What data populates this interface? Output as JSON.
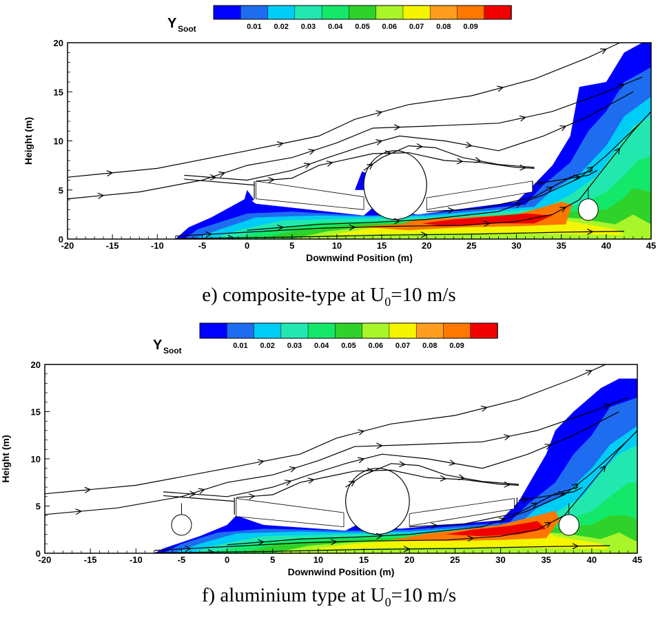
{
  "colorbar_colors": [
    "#0000ff",
    "#1e6cf0",
    "#00cdf5",
    "#22e8b0",
    "#14e86a",
    "#2ed22a",
    "#a8f52a",
    "#f5f500",
    "#ff9e1e",
    "#fe7800",
    "#f00000"
  ],
  "colorbar_ticks": [
    "0.01",
    "0.02",
    "0.03",
    "0.04",
    "0.05",
    "0.06",
    "0.07",
    "0.08",
    "0.09"
  ],
  "colorbar_title": "Y",
  "colorbar_title_sub": "Soot",
  "chart_data": [
    {
      "type": "heatmap",
      "caption_prefix": "e) composite-type at U",
      "caption_sub": "0",
      "caption_suffix": "=10 m/s",
      "xlabel": "Downwind Position (m)",
      "ylabel": "Height (m)",
      "xlim": [
        -20,
        45
      ],
      "ylim": [
        0,
        20
      ],
      "xticks": [
        "-20",
        "-15",
        "-10",
        "-5",
        "0",
        "5",
        "10",
        "15",
        "20",
        "25",
        "30",
        "35",
        "40",
        "45"
      ],
      "yticks": [
        "0",
        "5",
        "10",
        "15",
        "20"
      ],
      "colorbar": {
        "label": "Y_Soot",
        "range": [
          0.0,
          0.1
        ],
        "ticks": [
          0.01,
          0.02,
          0.03,
          0.04,
          0.05,
          0.06,
          0.07,
          0.08,
          0.09
        ]
      },
      "peak_soot_region": "x 20–36 m, height 1–4 m (Y_Soot ≈ 0.08–0.09)",
      "fuselage": {
        "center": [
          16.5,
          5.5
        ],
        "radius": 3.5
      },
      "engines": [
        {
          "center": [
            38,
            3
          ],
          "radius": 1.1
        }
      ]
    },
    {
      "type": "heatmap",
      "caption_prefix": "f) aluminium type at U",
      "caption_sub": "0",
      "caption_suffix": "=10 m/s",
      "xlabel": "Downwind Position (m)",
      "ylabel": "Height (m)",
      "xlim": [
        -20,
        45
      ],
      "ylim": [
        0,
        20
      ],
      "xticks": [
        "-20",
        "-15",
        "-10",
        "-5",
        "0",
        "5",
        "10",
        "15",
        "20",
        "25",
        "30",
        "35",
        "40",
        "45"
      ],
      "yticks": [
        "0",
        "5",
        "10",
        "15",
        "20"
      ],
      "colorbar": {
        "label": "Y_Soot",
        "range": [
          0.0,
          0.1
        ],
        "ticks": [
          0.01,
          0.02,
          0.03,
          0.04,
          0.05,
          0.06,
          0.07,
          0.08,
          0.09
        ]
      },
      "peak_soot_region": "x 22–35 m, height 1–4 m (Y_Soot ≈ 0.08–0.09)",
      "fuselage": {
        "center": [
          16.5,
          5.5
        ],
        "radius": 3.5
      },
      "engines": [
        {
          "center": [
            -5,
            3
          ],
          "radius": 1.1
        },
        {
          "center": [
            37.5,
            3
          ],
          "radius": 1.1
        }
      ]
    }
  ]
}
